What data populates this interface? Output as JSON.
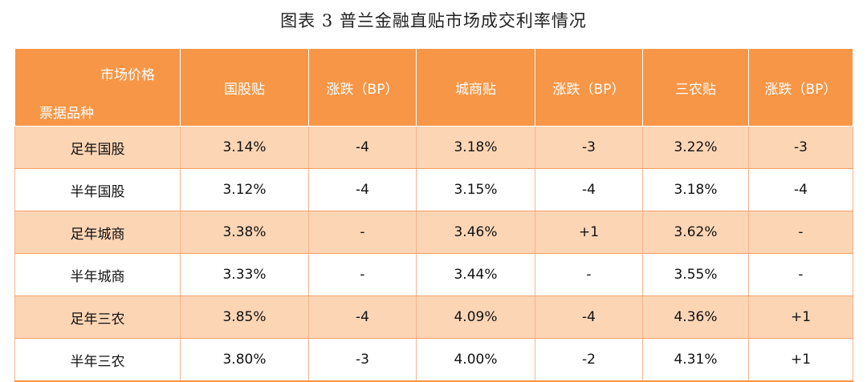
{
  "title": "图表 3  普兰金融直贴市场成交利率情况",
  "header": {
    "corner_top": "市场价格",
    "corner_bottom": "票据品种",
    "columns": [
      "国股贴",
      "涨跌（BP）",
      "城商贴",
      "涨跌（BP）",
      "三农贴",
      "涨跌（BP）"
    ]
  },
  "rows": [
    {
      "label": "足年国股",
      "cells": [
        "3.14%",
        "-4",
        "3.18%",
        "-3",
        "3.22%",
        "-3"
      ]
    },
    {
      "label": "半年国股",
      "cells": [
        "3.12%",
        "-4",
        "3.15%",
        "-4",
        "3.18%",
        "-4"
      ]
    },
    {
      "label": "足年城商",
      "cells": [
        "3.38%",
        "-",
        "3.46%",
        "+1",
        "3.62%",
        "-"
      ]
    },
    {
      "label": "半年城商",
      "cells": [
        "3.33%",
        "-",
        "3.44%",
        "-",
        "3.55%",
        "-"
      ]
    },
    {
      "label": "足年三农",
      "cells": [
        "3.85%",
        "-4",
        "4.09%",
        "-4",
        "4.36%",
        "+1"
      ]
    },
    {
      "label": "半年三农",
      "cells": [
        "3.80%",
        "-3",
        "4.00%",
        "-2",
        "4.31%",
        "+1"
      ]
    }
  ],
  "colors": {
    "header_bg": "#f79646",
    "odd_row_bg": "#fcd5b5",
    "even_row_bg": "#ffffff"
  }
}
